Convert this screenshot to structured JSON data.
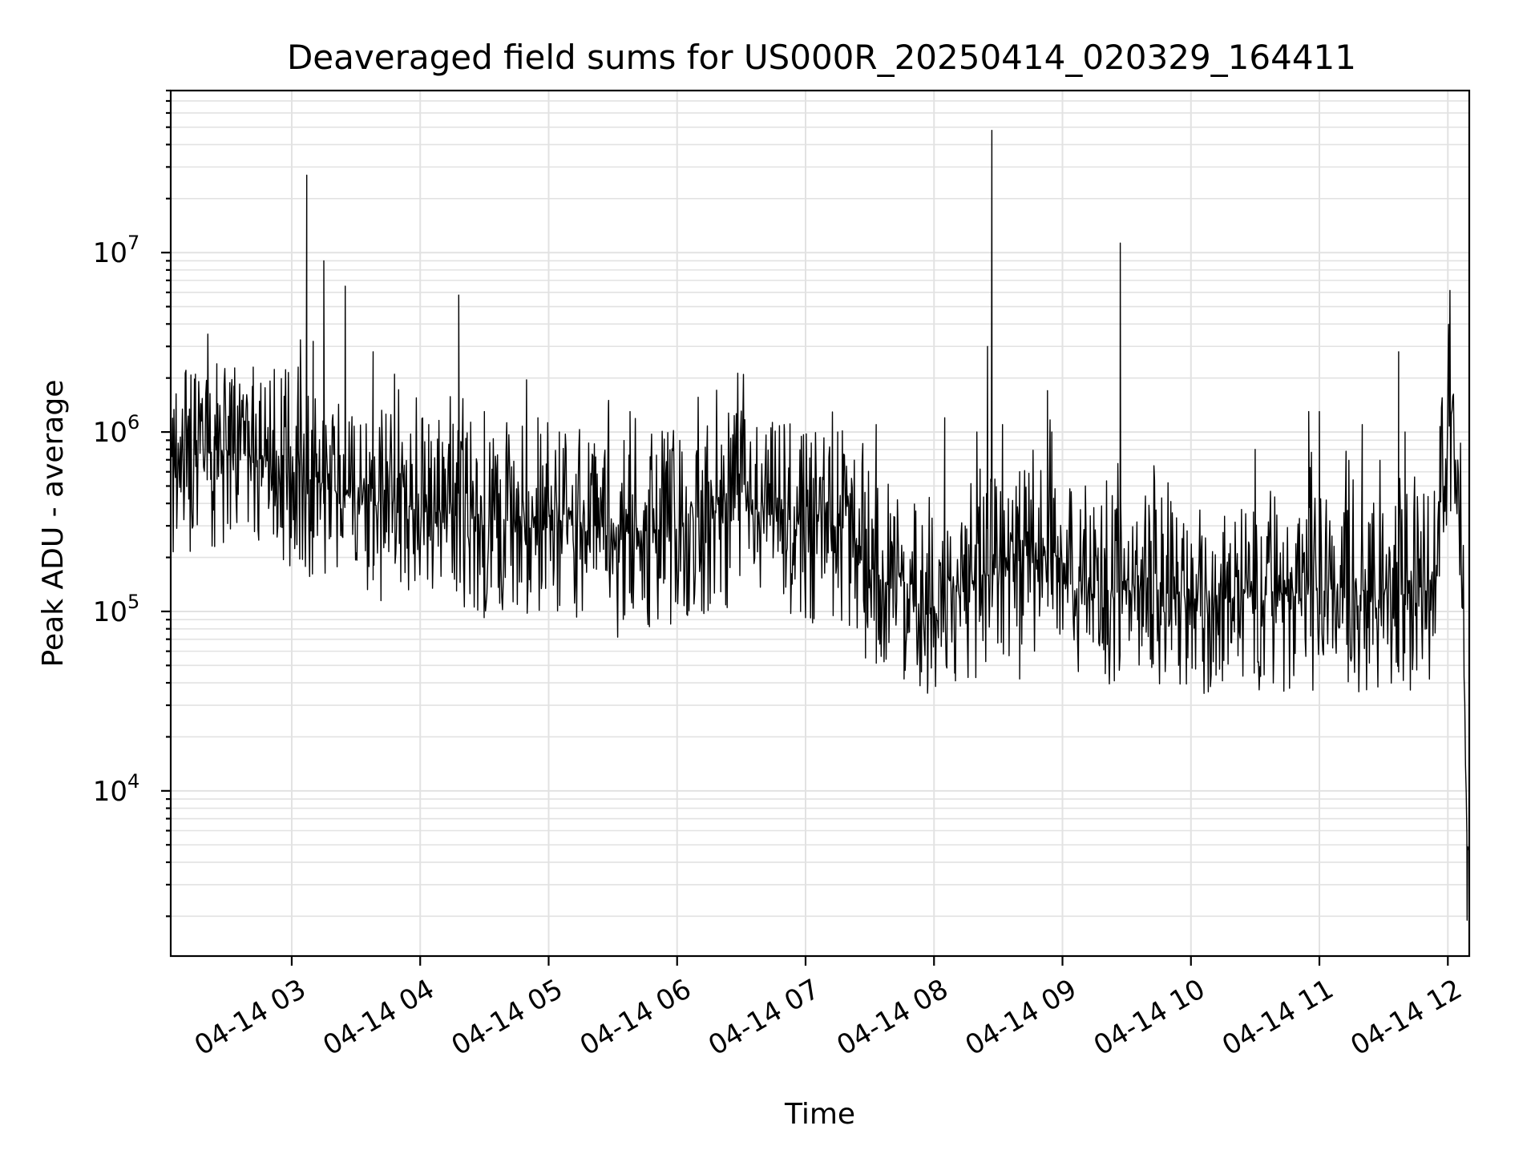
{
  "chart_data": {
    "type": "line",
    "title": "Deaveraged field sums for US000R_20250414_020329_164411",
    "xlabel": "Time",
    "ylabel": "Peak ADU - average",
    "yscale": "log",
    "ylim": [
      1200,
      80000000
    ],
    "xlim": [
      "2025-04-14 02:03:29",
      "2025-04-14 12:10:00"
    ],
    "grid": true,
    "x_ticks": [
      "04-14 03",
      "04-14 04",
      "04-14 05",
      "04-14 06",
      "04-14 07",
      "04-14 08",
      "04-14 09",
      "04-14 10",
      "04-14 11",
      "04-14 12"
    ],
    "y_ticks": [
      {
        "base": "10",
        "exp": "4"
      },
      {
        "base": "10",
        "exp": "5"
      },
      {
        "base": "10",
        "exp": "6"
      },
      {
        "base": "10",
        "exp": "7"
      }
    ],
    "series": [
      {
        "color": "#000000",
        "baseline": {
          "x": [
            "02:04",
            "02:20",
            "02:45",
            "03:00",
            "03:30",
            "04:00",
            "04:30",
            "05:00",
            "05:30",
            "06:00",
            "06:30",
            "07:00",
            "07:20",
            "07:35",
            "08:00",
            "08:30",
            "09:00",
            "09:10",
            "09:30",
            "10:00",
            "10:30",
            "11:00",
            "11:30",
            "11:53",
            "12:00",
            "12:03",
            "12:05",
            "12:07",
            "12:09",
            "12:10"
          ],
          "y": [
            600000,
            800000,
            750000,
            600000,
            420000,
            380000,
            320000,
            340000,
            250000,
            300000,
            380000,
            300000,
            300000,
            150000,
            120000,
            170000,
            200000,
            110000,
            150000,
            120000,
            120000,
            130000,
            120000,
            130000,
            1000000,
            1500000,
            600000,
            100000,
            5000,
            4500
          ]
        },
        "spikes": {
          "x": [
            "02:15",
            "02:25",
            "02:33",
            "02:42",
            "02:50",
            "03:03",
            "03:07",
            "03:10",
            "03:15",
            "03:25",
            "03:38",
            "03:48",
            "04:04",
            "04:18",
            "04:30",
            "04:55",
            "05:05",
            "05:28",
            "05:38",
            "06:50",
            "07:15",
            "07:33",
            "08:05",
            "08:20",
            "08:25",
            "08:27",
            "08:32",
            "08:53",
            "08:55",
            "09:27",
            "10:30",
            "10:55",
            "11:00",
            "11:20",
            "11:37",
            "11:40"
          ],
          "y": [
            2100000,
            2400000,
            1800000,
            2300000,
            1400000,
            2300000,
            27000000,
            3200000,
            9000000,
            6500000,
            2800000,
            2100000,
            1100000,
            5800000,
            1300000,
            1200000,
            1000000,
            1500000,
            1300000,
            1100000,
            1000000,
            1100000,
            1200000,
            1000000,
            3000000,
            48000000,
            1100000,
            1700000,
            1000000,
            11300000,
            800000,
            1300000,
            1300000,
            1100000,
            2800000,
            1000000
          ]
        },
        "dips": {
          "x": [
            "02:24",
            "03:38",
            "04:17",
            "05:57",
            "07:28",
            "07:46",
            "07:57",
            "08:10",
            "08:40",
            "09:20",
            "09:48",
            "10:48",
            "11:37",
            "12:09"
          ],
          "y": [
            230000,
            150000,
            130000,
            85000,
            55000,
            42000,
            35000,
            41000,
            42000,
            45000,
            47000,
            45000,
            46000,
            1900
          ]
        }
      }
    ]
  }
}
